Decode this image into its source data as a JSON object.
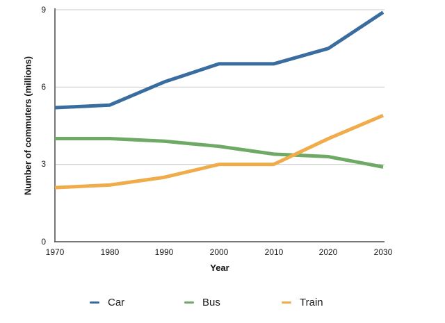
{
  "chart_data": {
    "type": "line",
    "title": "",
    "xlabel": "Year",
    "ylabel": "Number of commuters (millions)",
    "x": [
      1970,
      1980,
      1990,
      2000,
      2010,
      2020,
      2030
    ],
    "y_ticks_display": [
      9,
      6,
      3,
      0
    ],
    "ylim": [
      0,
      9
    ],
    "grid": "horizontal-gridlines-at-3-6-9",
    "legend_position": "bottom",
    "series": [
      {
        "name": "Car",
        "color": "#3A6D9F",
        "values": [
          5.2,
          5.3,
          6.2,
          6.9,
          6.9,
          7.5,
          8.9
        ]
      },
      {
        "name": "Bus",
        "color": "#6FA966",
        "values": [
          4.0,
          4.0,
          3.9,
          3.7,
          3.4,
          3.3,
          2.9
        ]
      },
      {
        "name": "Train",
        "color": "#F0AC4B",
        "values": [
          2.1,
          2.2,
          2.5,
          3.0,
          3.0,
          4.0,
          4.9
        ]
      }
    ],
    "axis_color": "#4a4a4a",
    "gridline_color": "#c9c9c9"
  }
}
